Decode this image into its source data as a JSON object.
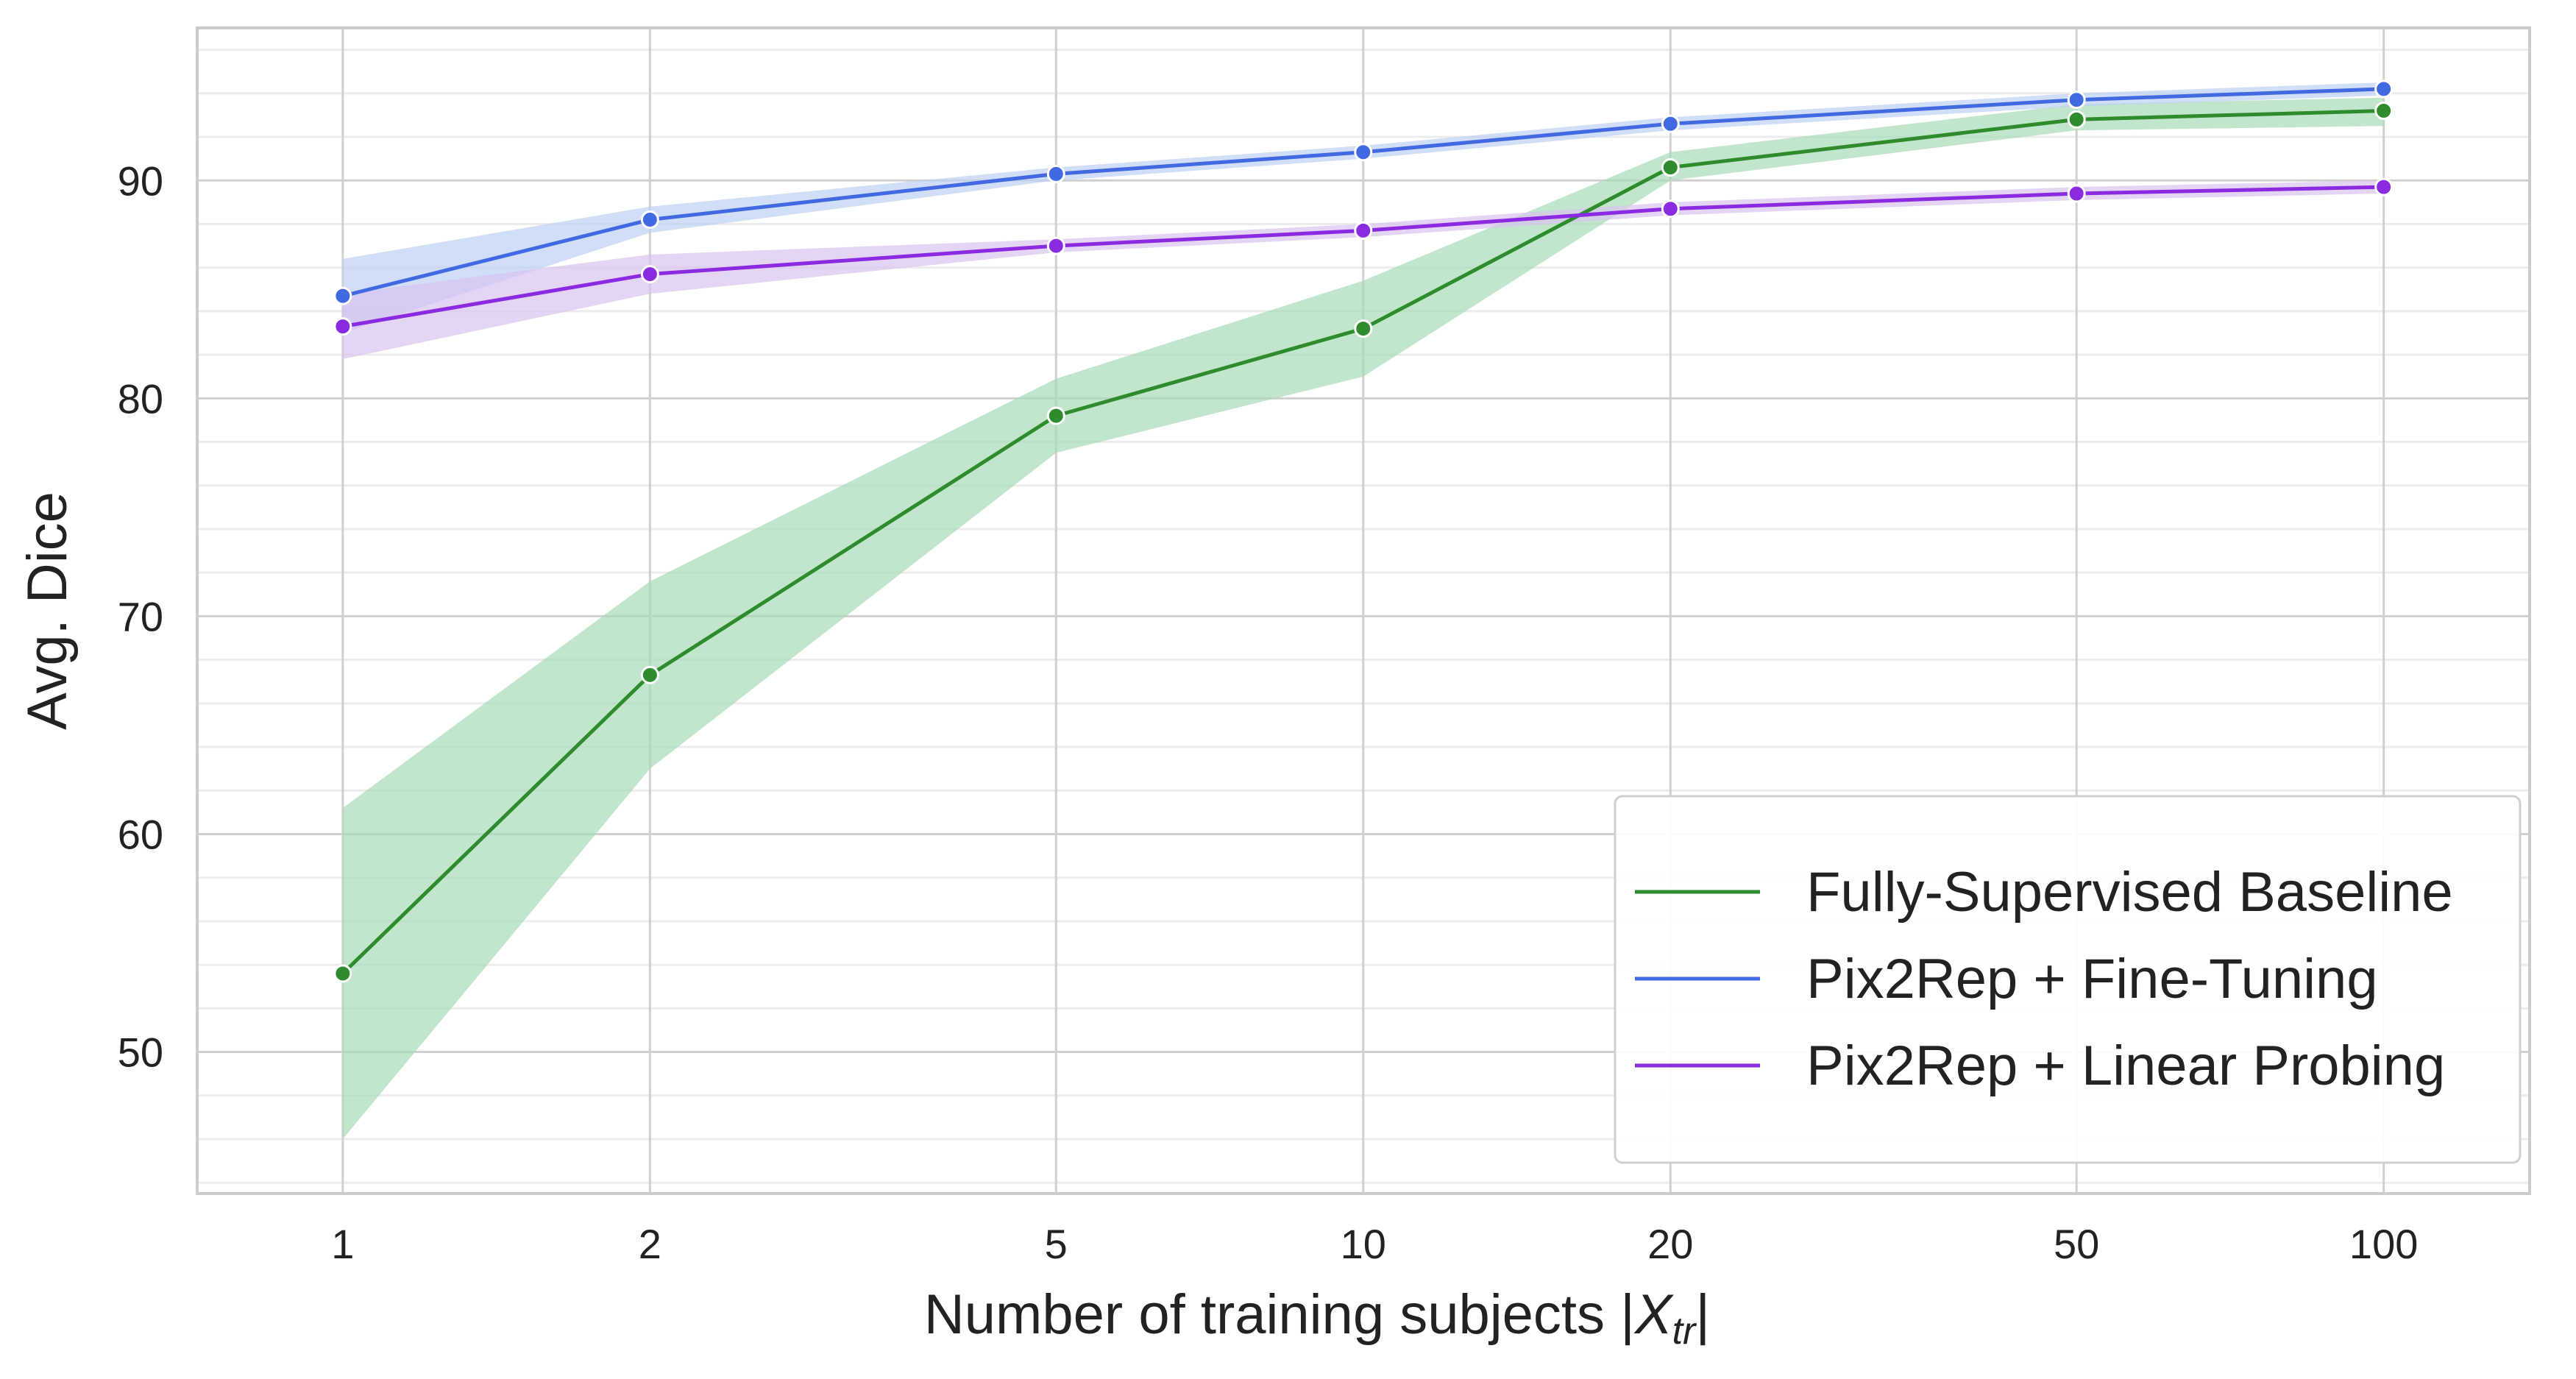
{
  "chart_data": {
    "type": "line",
    "xscale": "log",
    "x": [
      1,
      2,
      5,
      10,
      20,
      50,
      100
    ],
    "xticks": [
      "1",
      "2",
      "5",
      "10",
      "20",
      "50",
      "100"
    ],
    "yticks": [
      "50",
      "60",
      "70",
      "80",
      "90"
    ],
    "xlabel_main": "Number of training subjects |",
    "xlabel_var": "X",
    "xlabel_sub": "tr",
    "xlabel_end": "|",
    "ylabel": "Avg. Dice",
    "ylim": [
      43.5,
      97
    ],
    "xlim": [
      0.72,
      139
    ],
    "grid": true,
    "legend_position": "lower-right",
    "series": [
      {
        "name": "Fully-Supervised Baseline",
        "color": "#2e8b2e",
        "band_color": "#a8dbb7",
        "values": [
          53.6,
          67.3,
          79.2,
          83.2,
          90.6,
          92.8,
          93.2
        ],
        "lower": [
          46.0,
          63.0,
          77.5,
          81.0,
          90.0,
          92.3,
          92.5
        ],
        "upper": [
          61.2,
          71.6,
          80.9,
          85.4,
          91.3,
          93.5,
          93.8
        ]
      },
      {
        "name": "Pix2Rep + Fine-Tuning",
        "color": "#4169e1",
        "band_color": "#bcd0f5",
        "values": [
          84.7,
          88.2,
          90.3,
          91.3,
          92.6,
          93.7,
          94.2
        ],
        "lower": [
          83.0,
          87.6,
          90.0,
          91.0,
          92.3,
          93.4,
          93.9
        ],
        "upper": [
          86.4,
          88.8,
          90.6,
          91.6,
          92.9,
          94.0,
          94.5
        ]
      },
      {
        "name": "Pix2Rep + Linear Probing",
        "color": "#8a2be2",
        "band_color": "#d9c3f0",
        "values": [
          83.3,
          85.7,
          87.0,
          87.7,
          88.7,
          89.4,
          89.7
        ],
        "lower": [
          81.8,
          84.8,
          86.7,
          87.4,
          88.4,
          89.1,
          89.4
        ],
        "upper": [
          84.8,
          86.6,
          87.3,
          88.0,
          89.0,
          89.7,
          90.0
        ]
      }
    ]
  }
}
